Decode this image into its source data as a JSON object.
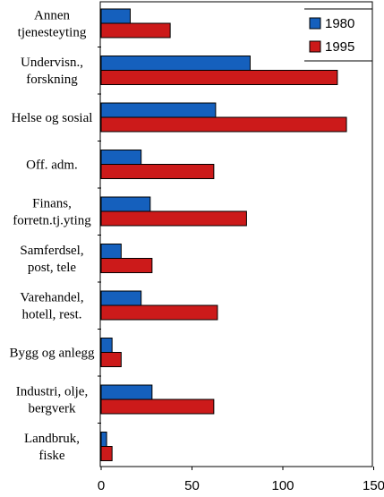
{
  "chart_data": {
    "type": "bar",
    "orientation": "horizontal",
    "categories": [
      [
        "Annen",
        "tjenesteyting"
      ],
      [
        "Undervisn.,",
        "forskning"
      ],
      [
        "Helse og sosial"
      ],
      [
        "Off. adm."
      ],
      [
        "Finans,",
        "forretn.tj.yting"
      ],
      [
        "Samferdsel,",
        "post, tele"
      ],
      [
        "Varehandel,",
        "hotell, rest."
      ],
      [
        "Bygg og anlegg"
      ],
      [
        "Industri, olje,",
        "bergverk"
      ],
      [
        "Landbruk,",
        "fiske"
      ]
    ],
    "series": [
      {
        "name": "1980",
        "color": "#1560bd",
        "values": [
          16,
          82,
          63,
          22,
          27,
          11,
          22,
          6,
          28,
          3
        ]
      },
      {
        "name": "1995",
        "color": "#cc1a1a",
        "values": [
          38,
          130,
          135,
          62,
          80,
          28,
          64,
          11,
          62,
          6
        ]
      }
    ],
    "x_ticks": [
      0,
      50,
      100,
      150
    ],
    "xlim": [
      0,
      150
    ],
    "legend_position": "top-right",
    "grid": false
  }
}
